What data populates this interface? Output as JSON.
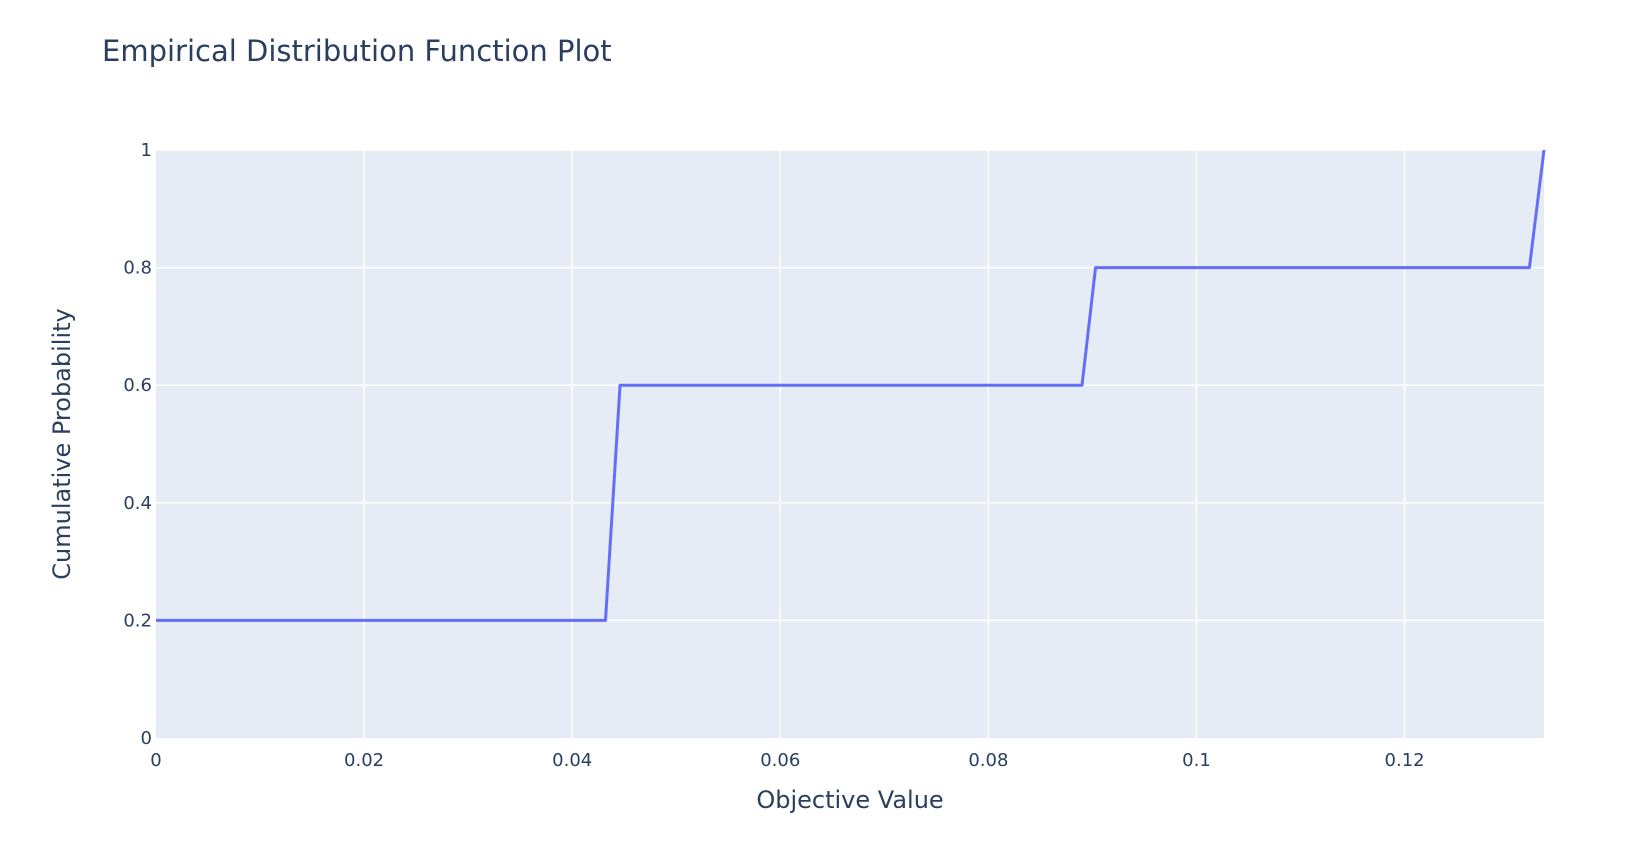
{
  "chart_data": {
    "type": "line",
    "line_shape": "step",
    "title": "Empirical Distribution Function Plot",
    "xlabel": "Objective Value",
    "ylabel": "Cumulative Probability",
    "xlim": [
      0,
      0.1334
    ],
    "ylim": [
      0,
      1
    ],
    "x_ticks": [
      0,
      0.02,
      0.04,
      0.06,
      0.08,
      0.1,
      0.12
    ],
    "x_tick_labels": [
      "0",
      "0.02",
      "0.04",
      "0.06",
      "0.08",
      "0.1",
      "0.12"
    ],
    "y_ticks": [
      0,
      0.2,
      0.4,
      0.6,
      0.8,
      1
    ],
    "y_tick_labels": [
      "0",
      "0.2",
      "0.4",
      "0.6",
      "0.8",
      "1"
    ],
    "grid": true,
    "series": [
      {
        "x": [
          0,
          0.0432,
          0.0446,
          0.089,
          0.0903,
          0.132,
          0.1334
        ],
        "y": [
          0.2,
          0.2,
          0.6,
          0.6,
          0.8,
          0.8,
          1.0
        ],
        "color": "#636efa"
      }
    ],
    "colors": {
      "plot_background": "#e5ecf6",
      "grid": "#ffffff",
      "text": "#2a3f5f",
      "line": "#636efa"
    }
  }
}
